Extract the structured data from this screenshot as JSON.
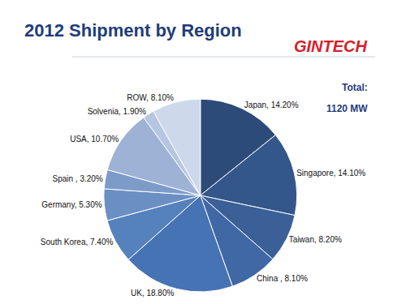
{
  "chart_data": {
    "type": "pie",
    "title": "2012 Shipment by Region",
    "logo": "GINTECH",
    "annotations": [
      "Total:",
      "1120 MW"
    ],
    "categories": [
      "Japan",
      "Singapore",
      "Taiwan",
      "China",
      "UK",
      "South Korea",
      "Germany",
      "Spain",
      "USA",
      "Solvenia",
      "ROW"
    ],
    "values": [
      14.2,
      14.1,
      8.2,
      8.1,
      18.8,
      7.4,
      5.3,
      3.2,
      10.7,
      1.9,
      8.1
    ],
    "value_labels": [
      "Japan, 14.20%",
      "Singapore, 14.10%",
      "Taiwan, 8.20%",
      "China , 8.10%",
      "UK, 18.80%",
      "South Korea, 7.40%",
      "Germany, 5.30%",
      "Spain , 3.20%",
      "USA, 10.70%",
      "Solvenia, 1.90%",
      "ROW, 8.10%"
    ],
    "colors": [
      "#2c4b78",
      "#34578b",
      "#3a6097",
      "#3f68a4",
      "#4673b3",
      "#5581bd",
      "#6a8fc3",
      "#7c9bc9",
      "#9db2d5",
      "#b6c6e1",
      "#cdd8eb"
    ],
    "data_labels": true
  }
}
